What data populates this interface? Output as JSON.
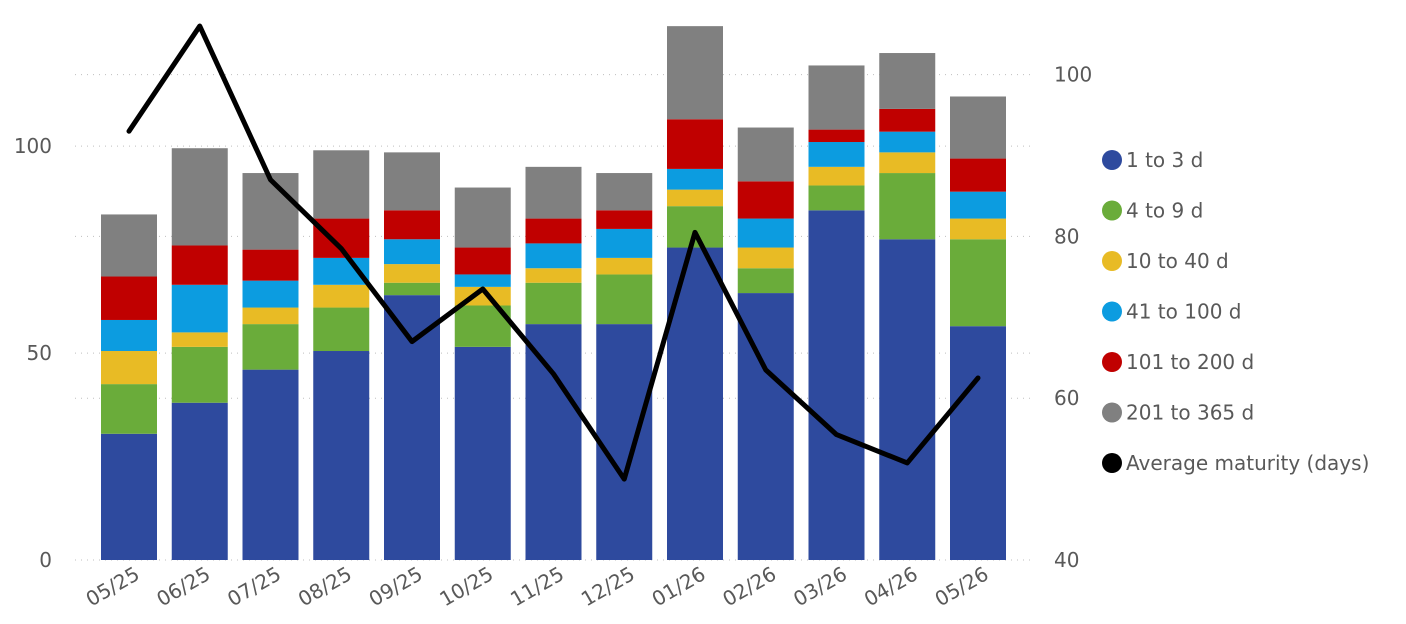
{
  "chart_data": {
    "type": "bar",
    "stacked": true,
    "categories": [
      "05/25",
      "06/25",
      "07/25",
      "08/25",
      "09/25",
      "10/25",
      "11/25",
      "12/25",
      "01/26",
      "02/26",
      "03/26",
      "04/26",
      "05/26"
    ],
    "series": [
      {
        "name": "1 to 3 d",
        "color": "#2e4a9e",
        "values": [
          30.5,
          38,
          46,
          50.5,
          64,
          51.5,
          57,
          57,
          75.5,
          64.5,
          84.5,
          77.5,
          56.5
        ]
      },
      {
        "name": "4 to 9 d",
        "color": "#6aac3a",
        "values": [
          12,
          13.5,
          11,
          10.5,
          3,
          10,
          10,
          12,
          10,
          6,
          6,
          16,
          21
        ]
      },
      {
        "name": "10 to 40 d",
        "color": "#e8bb25",
        "values": [
          8,
          3.5,
          4,
          5.5,
          4.5,
          4.5,
          3.5,
          4,
          4,
          5,
          4.5,
          5,
          5
        ]
      },
      {
        "name": "41 to 100 d",
        "color": "#0c9ce0",
        "values": [
          7.5,
          11.5,
          6.5,
          6.5,
          6,
          3,
          6,
          7,
          5,
          7,
          6,
          5,
          6.5
        ]
      },
      {
        "name": "101 to 200 d",
        "color": "#c00000",
        "values": [
          10.5,
          9.5,
          7.5,
          9.5,
          7,
          6.5,
          6,
          4.5,
          12,
          9,
          3,
          5.5,
          8
        ]
      },
      {
        "name": "201 to 365 d",
        "color": "#808080",
        "values": [
          15,
          23.5,
          18.5,
          16.5,
          14,
          14.5,
          12.5,
          9,
          22.5,
          13,
          15.5,
          13.5,
          15
        ]
      }
    ],
    "line_series": {
      "name": "Average maturity (days)",
      "color": "#000000",
      "axis": "right",
      "values": [
        93,
        106,
        87,
        78.5,
        67,
        73.5,
        63,
        50,
        80.5,
        63.5,
        55.5,
        52,
        62.5
      ]
    },
    "y_left": {
      "ylim": [
        0,
        130
      ],
      "ticks": [
        0,
        50,
        100
      ]
    },
    "y_right": {
      "ylim": [
        40,
        106.5
      ],
      "ticks": [
        40,
        60,
        80,
        100
      ]
    },
    "grid": true,
    "legend_position": "right"
  }
}
